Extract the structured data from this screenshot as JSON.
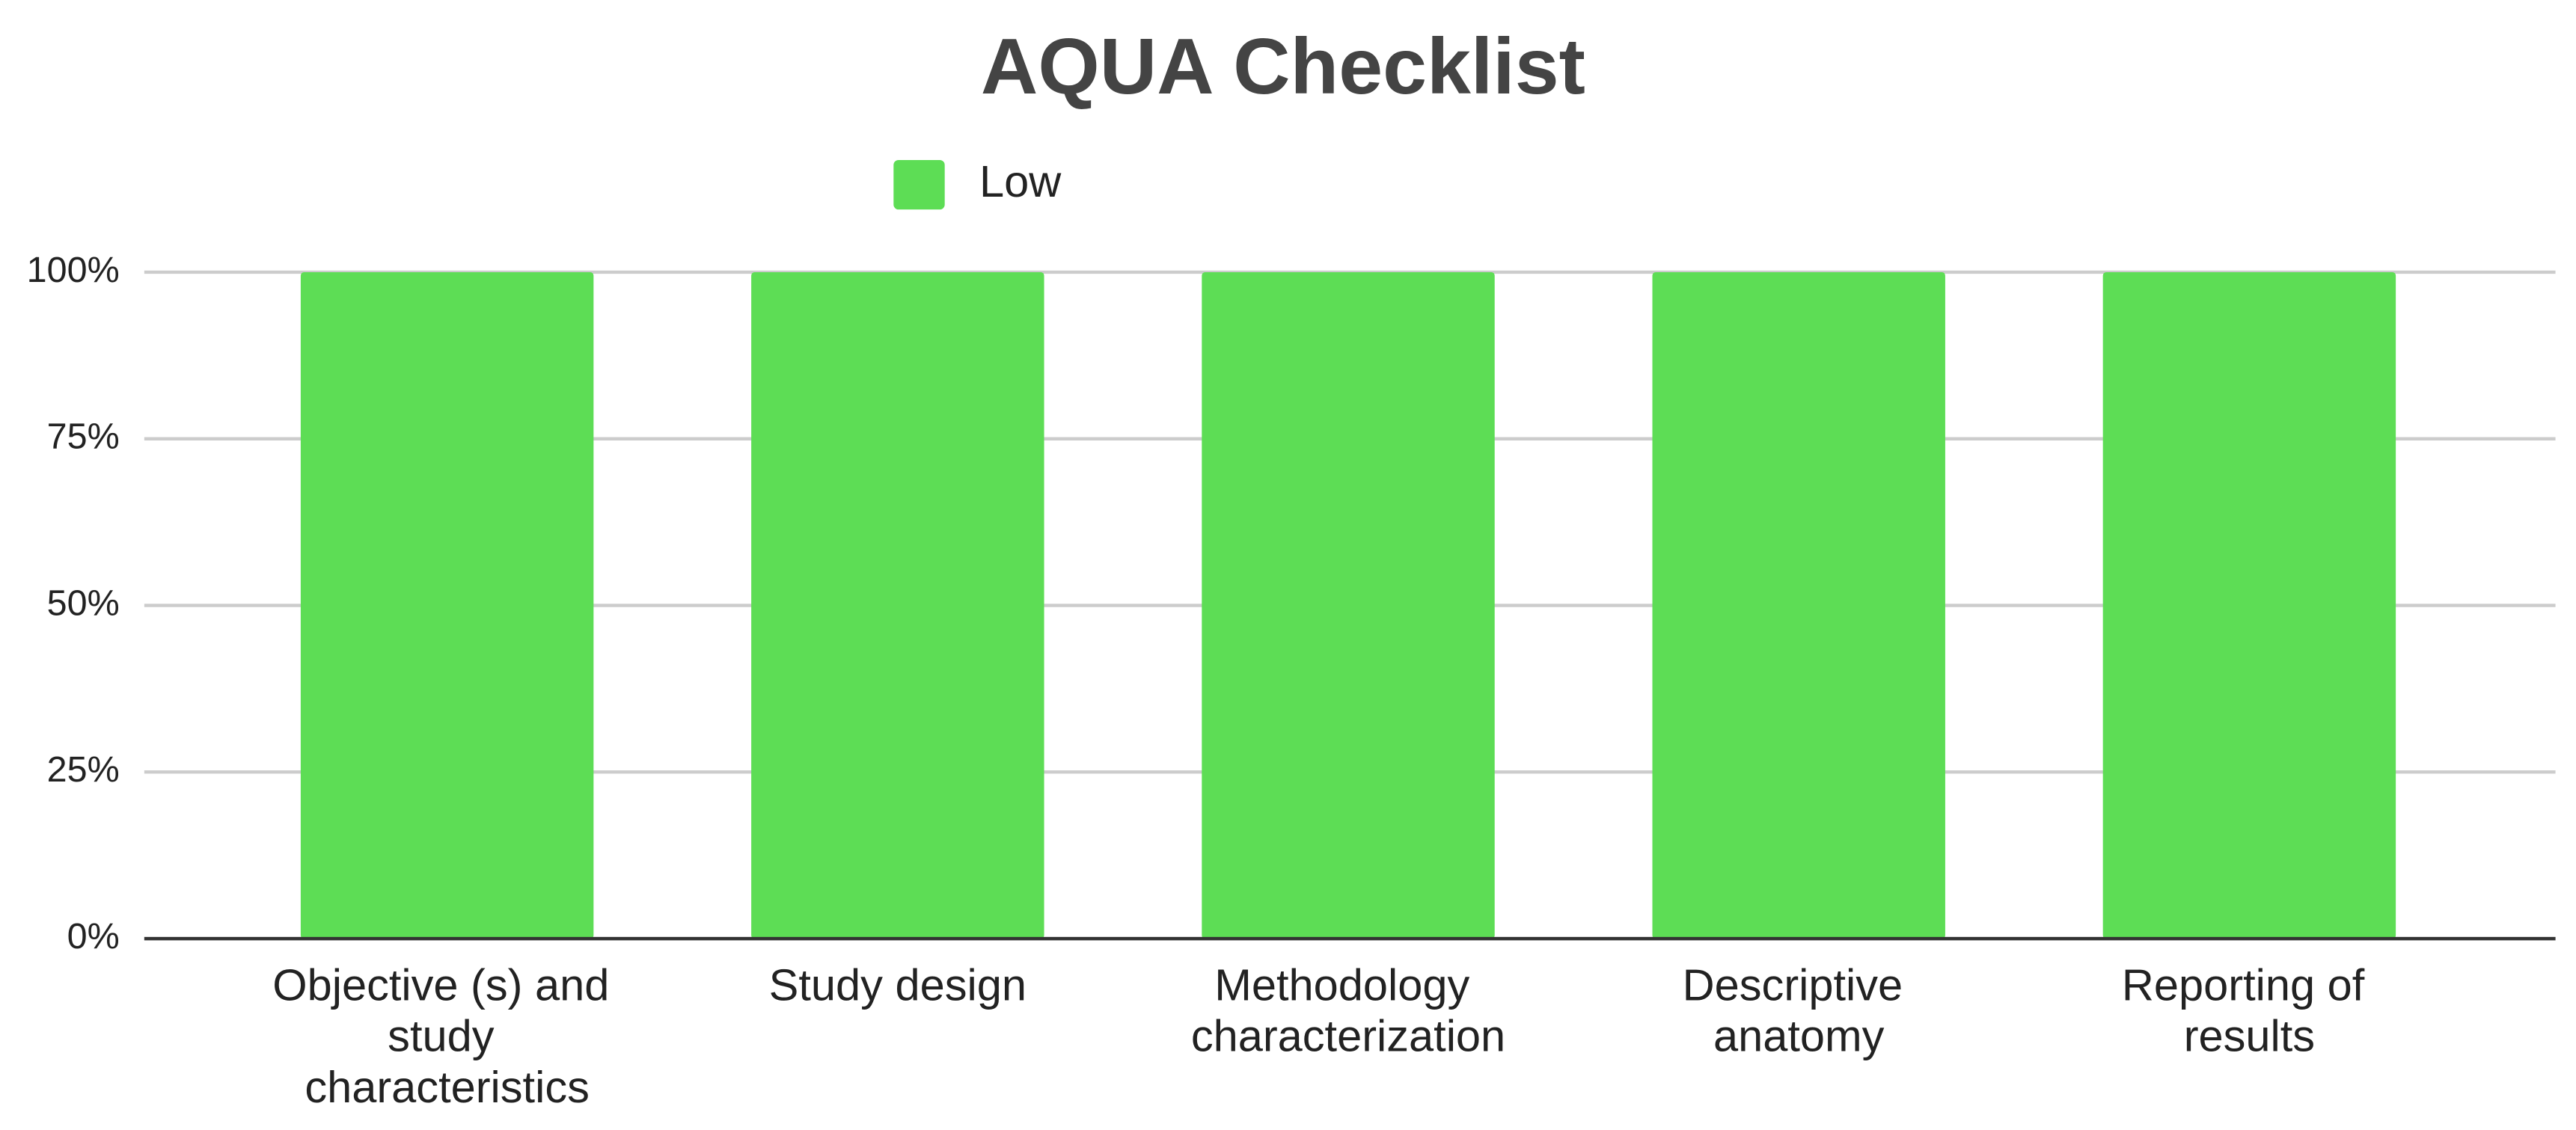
{
  "chart_data": {
    "type": "bar",
    "title": "AQUA Checklist",
    "categories": [
      "Objective (s) and study characteristics",
      "Study design",
      "Methodology characterization",
      "Descriptive anatomy",
      "Reporting of results"
    ],
    "series": [
      {
        "name": "Low",
        "color": "#5ddd55",
        "values": [
          100,
          100,
          100,
          100,
          100
        ]
      }
    ],
    "ylim": [
      0,
      100
    ],
    "yticks": [
      {
        "value": 0,
        "label": "0%"
      },
      {
        "value": 25,
        "label": "25%"
      },
      {
        "value": 50,
        "label": "50%"
      },
      {
        "value": 75,
        "label": "75%"
      },
      {
        "value": 100,
        "label": "100%"
      }
    ],
    "grid": true,
    "legend": "top"
  }
}
